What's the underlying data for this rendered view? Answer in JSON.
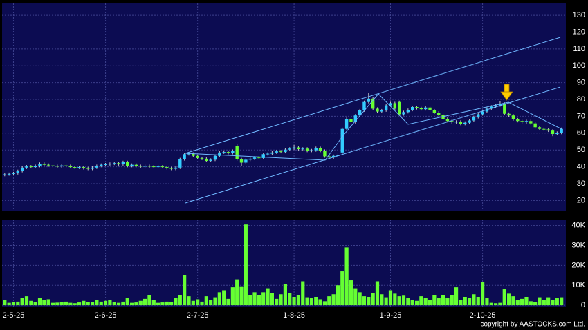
{
  "chart_data": [
    {
      "type": "candlestick",
      "up_color": "#33ccff",
      "down_color": "#66ff33",
      "doji_color": "#dddddd",
      "xlim": [
        -0.6,
        128
      ],
      "ylim": [
        14,
        137
      ],
      "yticks": [
        20,
        30,
        40,
        50,
        60,
        70,
        80,
        90,
        100,
        110,
        120,
        130
      ],
      "grid": true,
      "open": [
        35.2,
        35.5,
        35.8,
        36.2,
        37.5,
        39.5,
        40.2,
        39.8,
        40.5,
        41.8,
        41.2,
        40.8,
        40.5,
        40.2,
        40.8,
        40.5,
        39.8,
        39.5,
        39.8,
        39.2,
        38.8,
        39.5,
        40.5,
        41.2,
        41.5,
        41.8,
        42.2,
        41.5,
        42.8,
        40.5,
        41.2,
        40.5,
        40.2,
        40.5,
        40.2,
        39.8,
        40.2,
        39.8,
        39.2,
        38.8,
        39.5,
        44.5,
        47.5,
        47.8,
        46.5,
        45.2,
        44.8,
        43.5,
        44.2,
        46.5,
        48.5,
        48.8,
        48.2,
        52.5,
        44.5,
        42.5,
        44.2,
        44.8,
        45.5,
        45.2,
        47.5,
        47.8,
        48.5,
        49.2,
        48.8,
        50.2,
        50.8,
        51.5,
        50.5,
        50.8,
        49.5,
        49.8,
        51.2,
        49.5,
        46.2,
        45.5,
        46.5,
        48.5,
        62.5,
        68.5,
        66.5,
        70.5,
        73.5,
        78.5,
        80.5,
        74.5,
        72.8,
        73.5,
        76.5,
        77.8,
        78.5,
        71.2,
        72.5,
        73.8,
        75.5,
        74.8,
        74.2,
        75.2,
        73.5,
        72.2,
        70.8,
        68.5,
        67.2,
        66.5,
        66.8,
        65.5,
        66.2,
        67.5,
        69.5,
        71.2,
        72.8,
        74.5,
        75.8,
        76.5,
        77.5,
        71.5,
        70.5,
        68.2,
        67.2,
        66.5,
        67.2,
        65.8,
        63.5,
        62.5,
        62.2,
        61.5,
        59.5,
        60.2
      ],
      "high": [
        36.3,
        36.6,
        37.0,
        38.3,
        40.3,
        41.0,
        41.0,
        41.3,
        42.6,
        42.6,
        42.0,
        41.6,
        41.3,
        41.6,
        41.6,
        41.3,
        40.6,
        40.6,
        40.6,
        40.0,
        40.3,
        41.3,
        42.0,
        42.3,
        42.6,
        43.0,
        43.0,
        43.6,
        43.6,
        42.0,
        42.0,
        41.3,
        41.3,
        41.3,
        41.0,
        41.0,
        41.0,
        40.6,
        40.0,
        40.3,
        45.3,
        48.3,
        48.6,
        48.6,
        47.3,
        46.0,
        45.6,
        45.0,
        47.3,
        49.3,
        49.6,
        49.6,
        50.3,
        53.5,
        45.3,
        45.0,
        45.6,
        46.3,
        46.3,
        48.3,
        48.6,
        49.3,
        50.0,
        50.0,
        51.0,
        51.6,
        53.0,
        52.3,
        51.6,
        51.6,
        50.6,
        52.0,
        52.0,
        50.3,
        47.0,
        47.3,
        48.0,
        63.3,
        69.3,
        69.3,
        71.3,
        74.3,
        79.3,
        84.0,
        81.3,
        75.3,
        74.3,
        77.3,
        78.6,
        78.6,
        79.3,
        73.3,
        74.6,
        76.3,
        76.3,
        75.6,
        76.0,
        76.0,
        74.3,
        73.0,
        71.6,
        69.3,
        68.0,
        67.6,
        67.6,
        67.0,
        68.3,
        70.3,
        72.0,
        73.6,
        75.3,
        76.6,
        77.3,
        79.0,
        78.3,
        72.3,
        71.3,
        69.0,
        68.0,
        68.0,
        68.0,
        66.6,
        64.3,
        63.3,
        63.0,
        62.3,
        61.0,
        63.3
      ],
      "low": [
        34.4,
        34.7,
        35.0,
        35.4,
        36.7,
        38.7,
        39.0,
        39.0,
        39.7,
        40.4,
        40.0,
        39.7,
        39.4,
        39.4,
        39.7,
        39.0,
        38.7,
        38.7,
        38.4,
        38.0,
        38.0,
        38.7,
        39.7,
        40.4,
        40.7,
        41.0,
        40.7,
        40.7,
        39.7,
        39.7,
        39.7,
        39.4,
        39.4,
        39.4,
        39.0,
        39.0,
        39.0,
        38.4,
        38.0,
        38.0,
        38.7,
        43.7,
        46.7,
        45.7,
        44.4,
        44.0,
        42.7,
        42.7,
        43.4,
        45.7,
        47.7,
        47.4,
        47.4,
        43.7,
        40.5,
        41.7,
        43.4,
        44.0,
        44.4,
        44.4,
        46.7,
        47.0,
        47.7,
        48.0,
        48.0,
        49.4,
        50.0,
        49.7,
        49.7,
        48.7,
        48.7,
        49.0,
        48.7,
        45.4,
        44.7,
        44.7,
        45.7,
        47.7,
        61.7,
        65.7,
        65.7,
        69.7,
        72.7,
        77.7,
        73.7,
        72.0,
        72.0,
        72.7,
        75.7,
        73.7,
        70.4,
        70.4,
        71.7,
        73.0,
        74.0,
        73.4,
        73.4,
        72.7,
        71.4,
        70.0,
        67.7,
        66.4,
        65.7,
        65.7,
        64.7,
        64.7,
        65.4,
        66.7,
        68.7,
        70.4,
        72.0,
        73.7,
        75.0,
        75.7,
        70.7,
        69.7,
        67.4,
        66.4,
        65.7,
        65.7,
        65.0,
        62.7,
        61.7,
        61.4,
        60.7,
        58.2,
        58.7,
        59.4
      ],
      "close": [
        35.5,
        35.8,
        36.2,
        37.5,
        39.5,
        40.2,
        39.8,
        40.5,
        41.8,
        41.2,
        40.8,
        40.5,
        40.2,
        40.8,
        40.5,
        39.8,
        39.5,
        39.8,
        39.2,
        38.8,
        39.5,
        40.5,
        41.2,
        41.5,
        41.8,
        42.2,
        41.5,
        42.8,
        40.5,
        41.2,
        40.5,
        40.2,
        40.5,
        40.2,
        39.8,
        40.2,
        39.8,
        39.2,
        38.8,
        39.5,
        44.5,
        47.5,
        47.8,
        46.5,
        45.2,
        44.8,
        43.5,
        44.2,
        46.5,
        48.5,
        48.8,
        48.2,
        49.5,
        44.5,
        42.5,
        44.2,
        44.8,
        45.5,
        45.2,
        47.5,
        47.8,
        48.5,
        49.2,
        48.8,
        50.2,
        50.8,
        51.5,
        50.5,
        50.8,
        49.5,
        49.8,
        51.2,
        49.5,
        46.2,
        45.5,
        46.5,
        47.2,
        62.5,
        68.5,
        66.5,
        70.5,
        73.5,
        78.5,
        80.5,
        74.5,
        72.8,
        73.5,
        76.5,
        77.8,
        74.5,
        71.2,
        72.5,
        73.8,
        75.5,
        74.8,
        74.2,
        75.2,
        73.5,
        72.2,
        70.8,
        68.5,
        67.2,
        66.5,
        66.8,
        65.5,
        66.2,
        67.5,
        69.5,
        71.2,
        72.8,
        74.5,
        75.8,
        76.5,
        77.5,
        71.5,
        70.5,
        68.2,
        67.2,
        66.5,
        67.2,
        65.8,
        63.5,
        62.5,
        62.2,
        61.5,
        59.5,
        60.2,
        62.5
      ]
    },
    {
      "type": "bar",
      "color": "#66ff33",
      "xlim": [
        -0.6,
        128
      ],
      "xticks": [
        {
          "value": 2,
          "label": "2-5-25"
        },
        {
          "value": 23,
          "label": "2-6-25"
        },
        {
          "value": 44,
          "label": "2-7-25"
        },
        {
          "value": 66,
          "label": "1-8-25"
        },
        {
          "value": 88,
          "label": "1-9-25"
        },
        {
          "value": 109,
          "label": "2-10-25"
        }
      ],
      "ylim": [
        -1000,
        43000
      ],
      "yticks": [
        0,
        {
          "value": 10000,
          "label": "10K"
        },
        {
          "value": 20000,
          "label": "20K"
        },
        {
          "value": 30000,
          "label": "30K"
        },
        {
          "value": 40000,
          "label": "40K"
        }
      ],
      "grid": true,
      "values": [
        2500,
        1200,
        1500,
        1800,
        3800,
        4500,
        2200,
        1600,
        3500,
        2800,
        3000,
        1200,
        1300,
        1600,
        1800,
        1200,
        1000,
        1400,
        2200,
        1600,
        1500,
        2500,
        1800,
        2200,
        2800,
        1600,
        1200,
        1800,
        3500,
        1200,
        1400,
        2200,
        3200,
        5000,
        2500,
        1200,
        1400,
        1800,
        1600,
        3800,
        5000,
        15000,
        4500,
        2200,
        3000,
        1800,
        4500,
        2500,
        4000,
        6500,
        7500,
        3200,
        9000,
        13000,
        9500,
        40500,
        5000,
        6500,
        5200,
        6500,
        8500,
        6000,
        3200,
        5500,
        10500,
        6000,
        4200,
        5000,
        12000,
        4000,
        3500,
        4200,
        3000,
        2000,
        4500,
        5500,
        10000,
        17000,
        29000,
        12500,
        8500,
        6500,
        4500,
        4200,
        6000,
        12000,
        5500,
        4000,
        7500,
        5800,
        4500,
        4800,
        3600,
        2800,
        2200,
        4500,
        3800,
        2600,
        5000,
        3500,
        5000,
        3500,
        5000,
        9000,
        2500,
        4200,
        3800,
        5500,
        4200,
        11500,
        3500,
        1200,
        1000,
        1200,
        8000,
        5800,
        4500,
        2800,
        3200,
        4200,
        2000,
        1600,
        4000,
        2500,
        4000,
        2800,
        3500,
        4000
      ]
    }
  ],
  "footer": "copyright by AASTOCKS.com Ltd."
}
